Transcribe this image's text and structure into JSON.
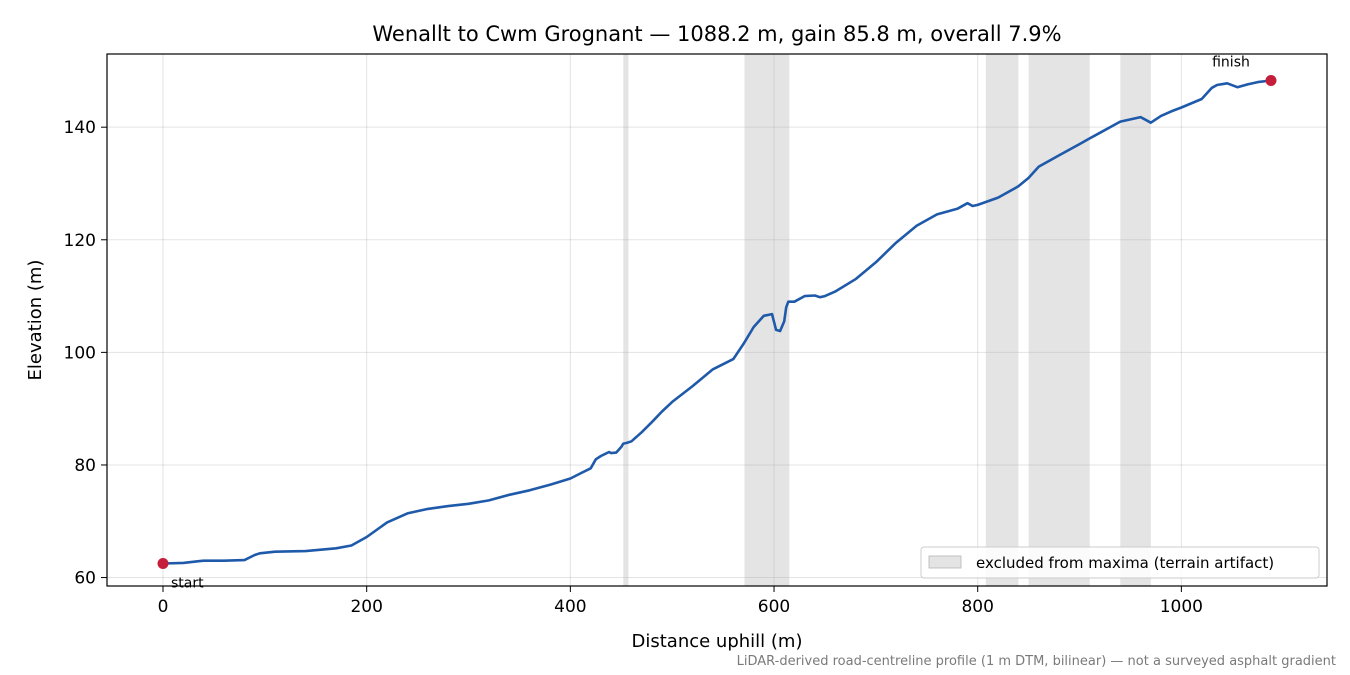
{
  "chart_data": {
    "type": "line",
    "title": "Wenallt to Cwm Grognant — 1088.2 m, gain 85.8 m, overall 7.9%",
    "xlabel": "Distance uphill (m)",
    "ylabel": "Elevation (m)",
    "xlim": [
      -55,
      1143
    ],
    "ylim": [
      58.5,
      153
    ],
    "x_ticks": [
      0,
      200,
      400,
      600,
      800,
      1000
    ],
    "y_ticks": [
      60,
      80,
      100,
      120,
      140
    ],
    "grid": true,
    "series": [
      {
        "color": "#1f5aaa",
        "x": [
          0,
          20,
          35,
          40,
          60,
          80,
          90,
          95,
          110,
          140,
          170,
          185,
          200,
          220,
          240,
          260,
          280,
          300,
          320,
          340,
          360,
          380,
          400,
          410,
          420,
          425,
          430,
          438,
          440,
          445,
          450,
          452,
          455,
          460,
          470,
          480,
          490,
          500,
          520,
          540,
          560,
          570,
          580,
          590,
          598,
          602,
          606,
          610,
          612,
          614,
          620,
          630,
          640,
          645,
          650,
          660,
          680,
          700,
          720,
          740,
          760,
          780,
          790,
          795,
          800,
          820,
          840,
          850,
          855,
          860,
          880,
          900,
          910,
          920,
          940,
          960,
          970,
          980,
          990,
          1000,
          1020,
          1030,
          1035,
          1045,
          1055,
          1065,
          1075,
          1088
        ],
        "y": [
          62.5,
          62.6,
          62.9,
          63.0,
          63.0,
          63.1,
          64.0,
          64.3,
          64.6,
          64.7,
          65.2,
          65.7,
          67.2,
          69.8,
          71.4,
          72.2,
          72.7,
          73.1,
          73.7,
          74.7,
          75.5,
          76.5,
          77.6,
          78.5,
          79.4,
          81.0,
          81.6,
          82.3,
          82.1,
          82.2,
          83.2,
          83.8,
          83.9,
          84.2,
          85.8,
          87.6,
          89.5,
          91.2,
          94.0,
          97.0,
          98.8,
          101.5,
          104.5,
          106.5,
          106.8,
          104.0,
          103.8,
          105.5,
          108.0,
          109.0,
          109.0,
          110.0,
          110.1,
          109.8,
          110.0,
          110.8,
          113.0,
          116.0,
          119.5,
          122.5,
          124.5,
          125.5,
          126.5,
          126.0,
          126.2,
          127.5,
          129.5,
          131.0,
          132.0,
          133.0,
          135.0,
          137.0,
          138.0,
          139.0,
          141.0,
          141.8,
          140.8,
          142.0,
          142.8,
          143.5,
          145.0,
          147.0,
          147.5,
          147.8,
          147.1,
          147.6,
          148.0,
          148.3
        ]
      }
    ],
    "markers": [
      {
        "x": 0,
        "y": 62.5,
        "label": "start",
        "color": "#c41e3a"
      },
      {
        "x": 1088,
        "y": 148.3,
        "label": "finish",
        "color": "#c41e3a"
      }
    ],
    "excluded_bands": [
      [
        452,
        457
      ],
      [
        571,
        615
      ],
      [
        808,
        840
      ],
      [
        850,
        910
      ],
      [
        940,
        970
      ]
    ],
    "legend": {
      "label": "excluded from maxima (terrain artifact)",
      "location": "lower-right",
      "swatch_color": "#d9d9d9"
    },
    "footnote": "LiDAR-derived road-centreline profile (1 m DTM, bilinear) — not a surveyed asphalt gradient"
  }
}
